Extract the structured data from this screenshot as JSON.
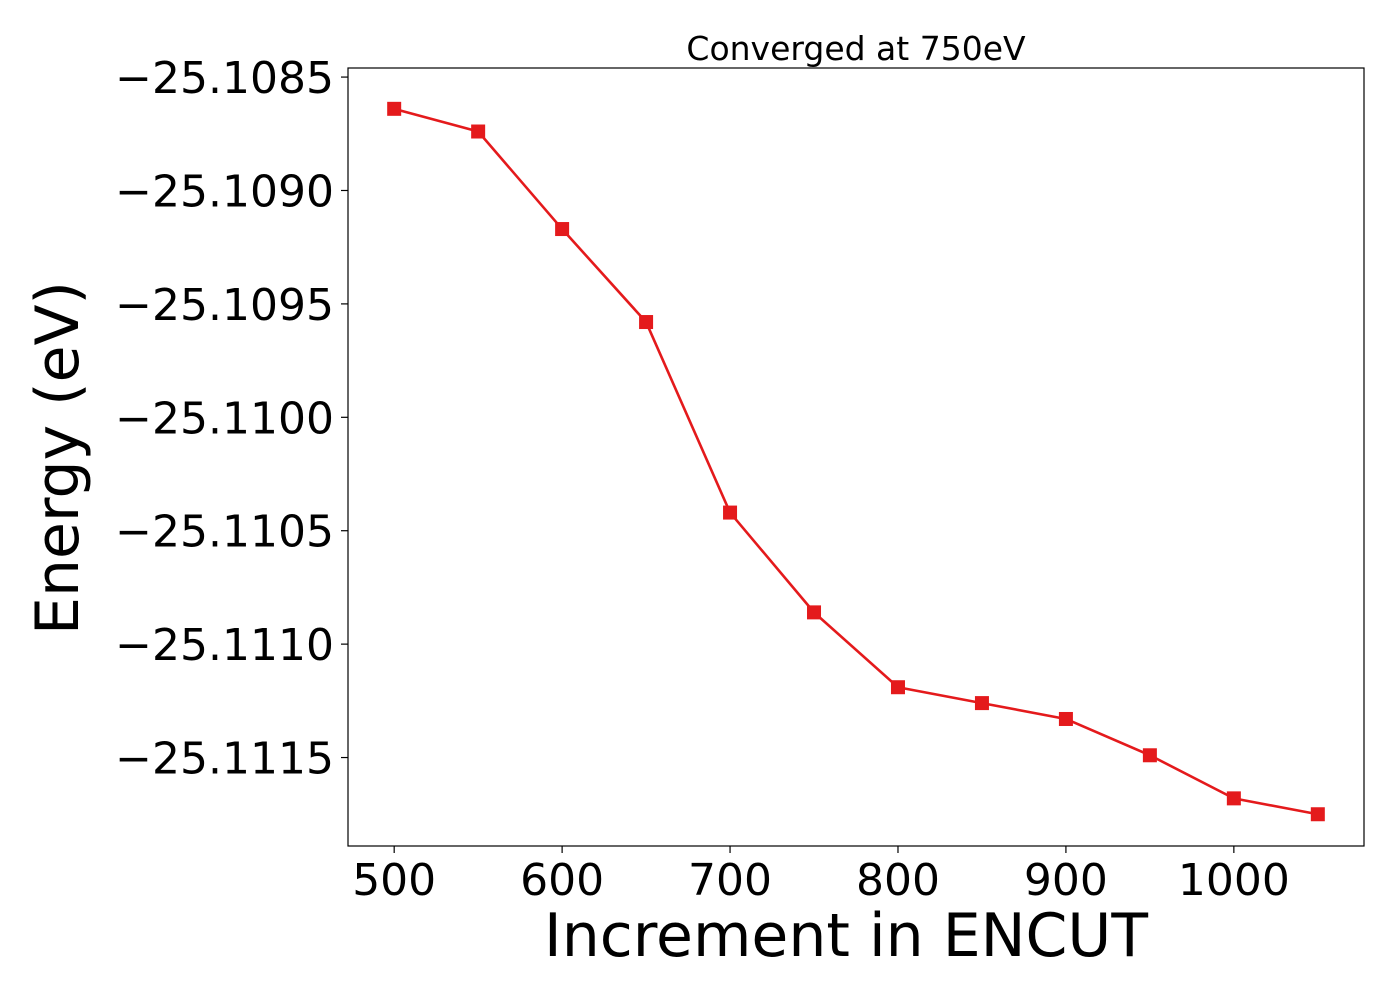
{
  "chart_data": {
    "type": "line",
    "title": "Converged at 750eV",
    "xlabel": "Increment in ENCUT",
    "ylabel": "Energy (eV)",
    "xlim": [
      472.5,
      1077.5
    ],
    "ylim": [
      -25.11189,
      -25.10846
    ],
    "x_ticks": [
      500,
      600,
      700,
      800,
      900,
      1000
    ],
    "x_tick_labels": [
      "500",
      "600",
      "700",
      "800",
      "900",
      "1000"
    ],
    "y_ticks": [
      -25.1085,
      -25.109,
      -25.1095,
      -25.11,
      -25.1105,
      -25.111,
      -25.1115
    ],
    "y_tick_labels": [
      "−25.1085",
      "−25.1090",
      "−25.1095",
      "−25.1100",
      "−25.1105",
      "−25.1110",
      "−25.1115"
    ],
    "grid": false,
    "legend": false,
    "series": [
      {
        "color": "#e41a1c",
        "marker": "square",
        "x": [
          500,
          550,
          600,
          650,
          700,
          750,
          800,
          850,
          900,
          950,
          1000,
          1050
        ],
        "y": [
          -25.10864,
          -25.10874,
          -25.10917,
          -25.10958,
          -25.11042,
          -25.11086,
          -25.11119,
          -25.11126,
          -25.11133,
          -25.11149,
          -25.11168,
          -25.11175
        ]
      }
    ]
  }
}
